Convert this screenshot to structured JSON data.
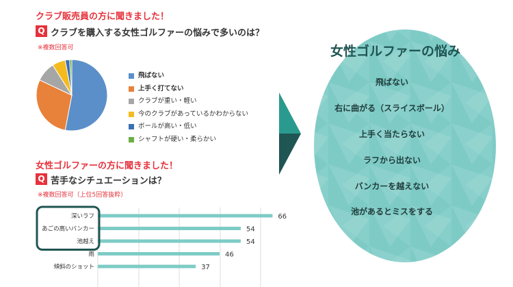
{
  "pie_section": {
    "heading": "クラブ販売員の方に聞きました！",
    "q_badge": "Q",
    "question": "クラブを購入する女性ゴルファーの悩みで多いのは？",
    "note": "※複数回答可"
  },
  "bar_section": {
    "heading": "女性ゴルファーの方に聞きました！",
    "q_badge": "Q",
    "question": "苦手なシチュエーションは？",
    "note": "※複数回答可（上位5回答抜粋）"
  },
  "bubble": {
    "title": "女性ゴルファーの悩み",
    "items": [
      "飛ばない",
      "右に曲がる（スライスボール）",
      "上手く当たらない",
      "ラフから出ない",
      "バンカーを越えない",
      "池があるとミスをする"
    ],
    "color": "#7ecbc6"
  },
  "colors": {
    "accent_red": "#e6323c",
    "arrow": "#2a9a8f",
    "bar": "#7ecbc6",
    "frame": "#1f5552"
  },
  "chart_data": [
    {
      "type": "pie",
      "categories": [
        "飛ばない",
        "上手く打てない",
        "クラブが重い・軽い",
        "今のクラブがあっているかわからない",
        "ボールが高い・低い",
        "シャフトが硬い・柔らかい"
      ],
      "values": [
        53,
        29,
        9,
        6,
        2,
        1
      ],
      "colors": [
        "#5b8fc9",
        "#e8813a",
        "#a6a6a6",
        "#f4bb1f",
        "#3b6fb6",
        "#6cae46"
      ],
      "bold_labels": [
        true,
        true,
        false,
        false,
        false,
        false
      ],
      "legend": "right"
    },
    {
      "type": "bar",
      "orientation": "horizontal",
      "categories": [
        "深いラフ",
        "あごの高いバンカー",
        "池越え",
        "雨",
        "傾斜のショット"
      ],
      "values": [
        66,
        54,
        54,
        46,
        37
      ],
      "highlighted": [
        "深いラフ",
        "あごの高いバンカー",
        "池越え"
      ],
      "xlim": [
        0,
        70
      ],
      "grid": true
    }
  ]
}
